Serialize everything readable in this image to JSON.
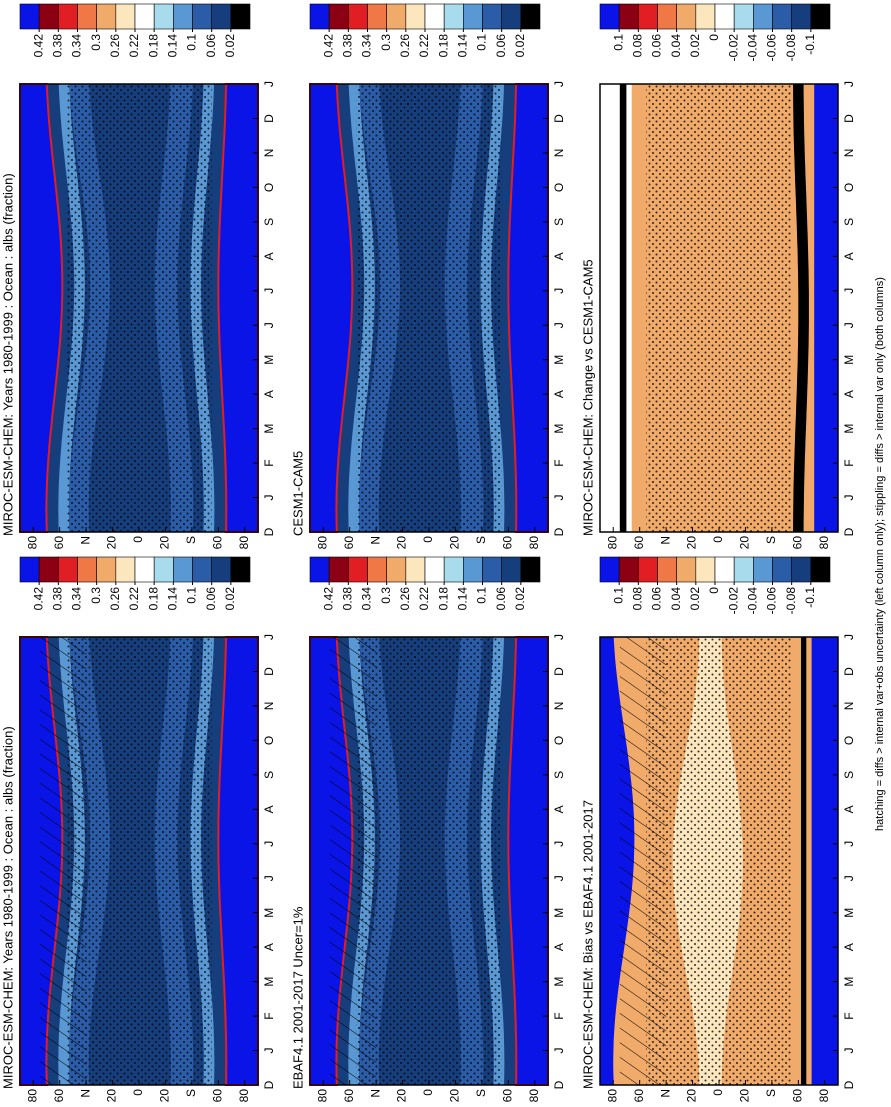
{
  "caption": "hatching = diffs > internal var+obs uncertainty (left column only); stippling = diffs > internal var only (both columns)",
  "chart_data": [
    {
      "type": "contour",
      "title": "MIROC-ESM-CHEM: Years 1980-1999 : Ocean : albs (fraction)",
      "hatching": true,
      "stippling": true,
      "categories": [
        "D",
        "J",
        "F",
        "M",
        "A",
        "M",
        "J",
        "J",
        "A",
        "S",
        "O",
        "N",
        "D",
        "J"
      ],
      "ylim": [
        -90,
        90
      ],
      "yticks": [
        80,
        60,
        {
          "value": 40,
          "label": "N"
        },
        20,
        0,
        {
          "value": -20,
          "label": "20"
        },
        {
          "value": -40,
          "label": "S"
        },
        {
          "value": -60,
          "label": "60"
        },
        {
          "value": -80,
          "label": "80"
        }
      ],
      "levels": [
        0.42,
        0.38,
        0.34,
        0.3,
        0.26,
        0.22,
        0.18,
        0.14,
        0.1,
        0.06,
        0.02
      ],
      "colors": [
        "#0a14e6",
        "#8c0014",
        "#e01e24",
        "#f07846",
        "#f0aa6a",
        "#fbe6be",
        "#ffffff",
        "#a8dcec",
        "#5a98d4",
        "#2a5ca8",
        "#163e7c",
        "#000000"
      ]
    },
    {
      "type": "contour",
      "title": "MIROC-ESM-CHEM: Years 1980-1999 : Ocean : albs (fraction)",
      "hatching": false,
      "stippling": true,
      "categories": [
        "D",
        "J",
        "F",
        "M",
        "A",
        "M",
        "J",
        "J",
        "A",
        "S",
        "O",
        "N",
        "D",
        "J"
      ],
      "ylim": [
        -90,
        90
      ],
      "yticks": [
        80,
        60,
        {
          "value": 40,
          "label": "N"
        },
        20,
        0,
        {
          "value": -20,
          "label": "20"
        },
        {
          "value": -40,
          "label": "S"
        },
        {
          "value": -60,
          "label": "60"
        },
        {
          "value": -80,
          "label": "80"
        }
      ],
      "levels": [
        0.42,
        0.38,
        0.34,
        0.3,
        0.26,
        0.22,
        0.18,
        0.14,
        0.1,
        0.06,
        0.02
      ],
      "colors": [
        "#0a14e6",
        "#8c0014",
        "#e01e24",
        "#f07846",
        "#f0aa6a",
        "#fbe6be",
        "#ffffff",
        "#a8dcec",
        "#5a98d4",
        "#2a5ca8",
        "#163e7c",
        "#000000"
      ]
    },
    {
      "type": "contour",
      "title": "EBAF4.1 2001-2017 Uncer=1%",
      "hatching": true,
      "stippling": true,
      "categories": [
        "D",
        "J",
        "F",
        "M",
        "A",
        "M",
        "J",
        "J",
        "A",
        "S",
        "O",
        "N",
        "D",
        "J"
      ],
      "ylim": [
        -90,
        90
      ],
      "yticks": [
        80,
        60,
        {
          "value": 40,
          "label": "N"
        },
        20,
        0,
        {
          "value": -20,
          "label": "20"
        },
        {
          "value": -40,
          "label": "S"
        },
        {
          "value": -60,
          "label": "60"
        },
        {
          "value": -80,
          "label": "80"
        }
      ],
      "levels": [
        0.42,
        0.38,
        0.34,
        0.3,
        0.26,
        0.22,
        0.18,
        0.14,
        0.1,
        0.06,
        0.02
      ],
      "colors": [
        "#0a14e6",
        "#8c0014",
        "#e01e24",
        "#f07846",
        "#f0aa6a",
        "#fbe6be",
        "#ffffff",
        "#a8dcec",
        "#5a98d4",
        "#2a5ca8",
        "#163e7c",
        "#000000"
      ]
    },
    {
      "type": "contour",
      "title": "CESM1-CAM5",
      "hatching": false,
      "stippling": true,
      "categories": [
        "D",
        "J",
        "F",
        "M",
        "A",
        "M",
        "J",
        "J",
        "A",
        "S",
        "O",
        "N",
        "D",
        "J"
      ],
      "ylim": [
        -90,
        90
      ],
      "yticks": [
        80,
        60,
        {
          "value": 40,
          "label": "N"
        },
        20,
        0,
        {
          "value": -20,
          "label": "20"
        },
        {
          "value": -40,
          "label": "S"
        },
        {
          "value": -60,
          "label": "60"
        },
        {
          "value": -80,
          "label": "80"
        }
      ],
      "levels": [
        0.42,
        0.38,
        0.34,
        0.3,
        0.26,
        0.22,
        0.18,
        0.14,
        0.1,
        0.06,
        0.02
      ],
      "colors": [
        "#0a14e6",
        "#8c0014",
        "#e01e24",
        "#f07846",
        "#f0aa6a",
        "#fbe6be",
        "#ffffff",
        "#a8dcec",
        "#5a98d4",
        "#2a5ca8",
        "#163e7c",
        "#000000"
      ]
    },
    {
      "type": "contour",
      "title": "MIROC-ESM-CHEM: Bias vs EBAF4.1 2001-2017",
      "hatching": true,
      "stippling": true,
      "categories": [
        "D",
        "J",
        "F",
        "M",
        "A",
        "M",
        "J",
        "J",
        "A",
        "S",
        "O",
        "N",
        "D",
        "J"
      ],
      "ylim": [
        -90,
        90
      ],
      "yticks": [
        80,
        60,
        {
          "value": 40,
          "label": "N"
        },
        20,
        0,
        {
          "value": -20,
          "label": "20"
        },
        {
          "value": -40,
          "label": "S"
        },
        {
          "value": -60,
          "label": "60"
        },
        {
          "value": -80,
          "label": "80"
        }
      ],
      "levels": [
        0.1,
        0.08,
        0.06,
        0.04,
        0.02,
        0,
        -0.02,
        -0.04,
        -0.06,
        -0.08,
        -0.1
      ],
      "colors": [
        "#0a14e6",
        "#8c0014",
        "#e01e24",
        "#f07846",
        "#f0aa6a",
        "#fbe6be",
        "#ffffff",
        "#a8dcec",
        "#5a98d4",
        "#2a5ca8",
        "#163e7c",
        "#000000"
      ]
    },
    {
      "type": "contour",
      "title": "MIROC-ESM-CHEM: Change vs CESM1-CAM5",
      "hatching": false,
      "stippling": true,
      "categories": [
        "D",
        "J",
        "F",
        "M",
        "A",
        "M",
        "J",
        "J",
        "A",
        "S",
        "O",
        "N",
        "D",
        "J"
      ],
      "ylim": [
        -90,
        90
      ],
      "yticks": [
        80,
        60,
        {
          "value": 40,
          "label": "N"
        },
        20,
        0,
        {
          "value": -20,
          "label": "20"
        },
        {
          "value": -40,
          "label": "S"
        },
        {
          "value": -60,
          "label": "60"
        },
        {
          "value": -80,
          "label": "80"
        }
      ],
      "levels": [
        0.1,
        0.08,
        0.06,
        0.04,
        0.02,
        0,
        -0.02,
        -0.04,
        -0.06,
        -0.08,
        -0.1
      ],
      "colors": [
        "#0a14e6",
        "#8c0014",
        "#e01e24",
        "#f07846",
        "#f0aa6a",
        "#fbe6be",
        "#ffffff",
        "#a8dcec",
        "#5a98d4",
        "#2a5ca8",
        "#163e7c",
        "#000000"
      ]
    }
  ]
}
